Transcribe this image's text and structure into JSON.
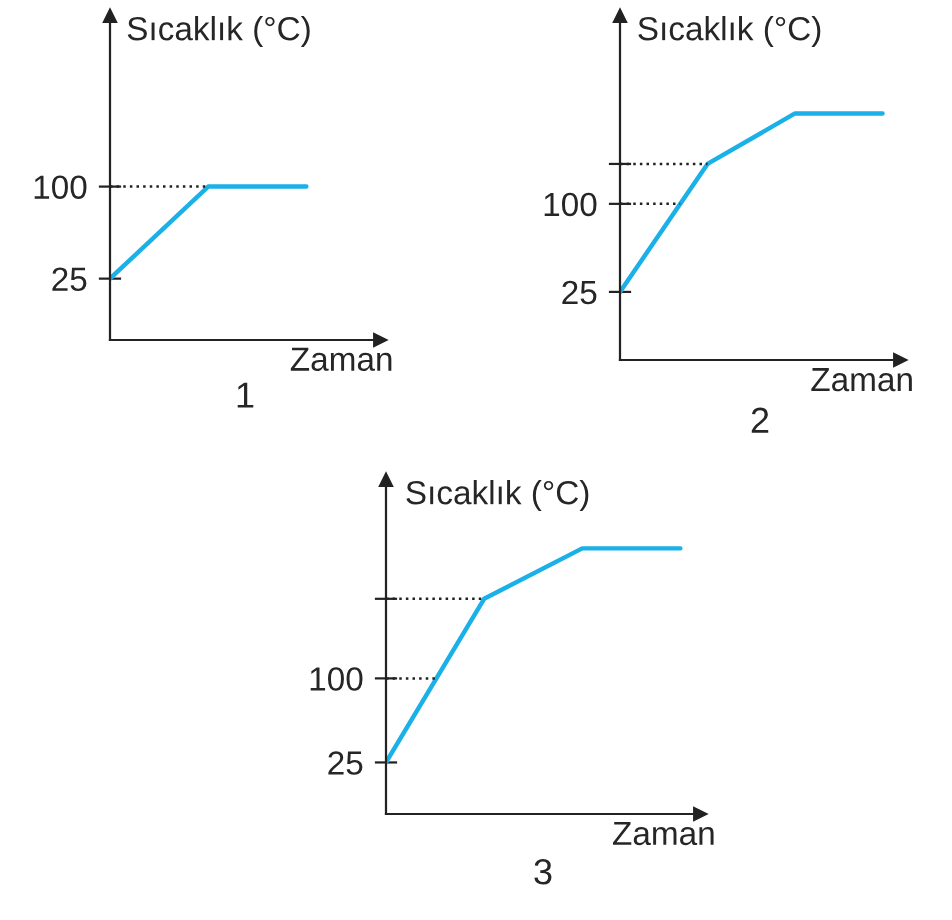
{
  "chart_data": [
    {
      "type": "line",
      "title": "1",
      "xlabel": "Zaman",
      "ylabel": "Sıcaklık (°C)",
      "categories": [
        null,
        null,
        null
      ],
      "series": [
        {
          "color": "#1ab0e8",
          "values": [
            25,
            100,
            100
          ]
        }
      ],
      "ylim": [
        -25,
        239
      ],
      "yticks": [
        25,
        100
      ],
      "tick_labels": "y",
      "grid": false,
      "marker": "none",
      "line_style": "solid",
      "ref_lines": [
        {
          "axis": "y",
          "value": 100,
          "line_style": "dotted"
        }
      ]
    },
    {
      "type": "line",
      "title": "2",
      "xlabel": "Zaman",
      "ylabel": "Sıcaklık (°C)",
      "categories": [
        null,
        null,
        null,
        null
      ],
      "series": [
        {
          "color": "#1ab0e8",
          "values": [
            25,
            134,
            177,
            177
          ]
        }
      ],
      "ylim": [
        -33,
        260
      ],
      "yticks": [
        25,
        100,
        {
          "value": 134,
          "label": null
        }
      ],
      "tick_labels": "y",
      "grid": false,
      "marker": "none",
      "line_style": "solid",
      "ref_lines": [
        {
          "axis": "y",
          "value": 100,
          "line_style": "dotted"
        },
        {
          "axis": "y",
          "value": 134,
          "line_style": "dotted"
        }
      ]
    },
    {
      "type": "line",
      "title": "3",
      "xlabel": "Zaman",
      "ylabel": "Sıcaklık (°C)",
      "categories": [
        null,
        null,
        null,
        null
      ],
      "series": [
        {
          "color": "#1ab0e8",
          "values": [
            25,
            171,
            216,
            216
          ]
        }
      ],
      "ylim": [
        -21,
        277
      ],
      "yticks": [
        25,
        100,
        {
          "value": 171,
          "label": null
        }
      ],
      "tick_labels": "y",
      "grid": false,
      "marker": "none",
      "line_style": "solid",
      "ref_lines": [
        {
          "axis": "y",
          "value": 100,
          "line_style": "dotted"
        },
        {
          "axis": "y",
          "value": 171,
          "line_style": "dotted"
        }
      ]
    }
  ]
}
